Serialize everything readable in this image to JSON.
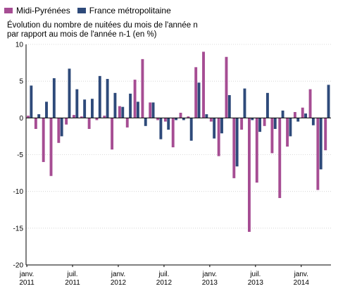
{
  "chart_data": {
    "type": "bar",
    "subtitle_line1": "Évolution du nombre de nuitées du mois de l'année n",
    "subtitle_line2": "par rapport au mois de l'année n-1 (en %)",
    "ylim": [
      -20,
      10
    ],
    "yticks": [
      -20,
      -15,
      -10,
      -5,
      0,
      5,
      10
    ],
    "ytick_labels": [
      "-20",
      "-15",
      "-10",
      "-5",
      "0",
      "5",
      "10"
    ],
    "grid": true,
    "legend_position": "top-left",
    "xtick_labels": [
      {
        "index": 0,
        "line1": "janv.",
        "line2": "2011"
      },
      {
        "index": 6,
        "line1": "juil.",
        "line2": "2011"
      },
      {
        "index": 12,
        "line1": "janv.",
        "line2": "2012"
      },
      {
        "index": 18,
        "line1": "juil.",
        "line2": "2012"
      },
      {
        "index": 24,
        "line1": "janv.",
        "line2": "2013"
      },
      {
        "index": 30,
        "line1": "juil.",
        "line2": "2013"
      },
      {
        "index": 36,
        "line1": "janv.",
        "line2": "2014"
      }
    ],
    "categories": [
      "2011-01",
      "2011-02",
      "2011-03",
      "2011-04",
      "2011-05",
      "2011-06",
      "2011-07",
      "2011-08",
      "2011-09",
      "2011-10",
      "2011-11",
      "2011-12",
      "2012-01",
      "2012-02",
      "2012-03",
      "2012-04",
      "2012-05",
      "2012-06",
      "2012-07",
      "2012-08",
      "2012-09",
      "2012-10",
      "2012-11",
      "2012-12",
      "2013-01",
      "2013-02",
      "2013-03",
      "2013-04",
      "2013-05",
      "2013-06",
      "2013-07",
      "2013-08",
      "2013-09",
      "2013-10",
      "2013-11",
      "2013-12",
      "2014-01",
      "2014-02",
      "2014-03",
      "2014-04"
    ],
    "series": [
      {
        "name": "Midi-Pyrénées",
        "color": "#a64d93",
        "values": [
          0.3,
          -1.5,
          -6.0,
          -7.9,
          -3.4,
          -0.9,
          0.4,
          0.2,
          -1.5,
          -0.3,
          0.3,
          -4.3,
          1.6,
          -1.3,
          5.2,
          8.0,
          2.1,
          -0.3,
          -0.5,
          -4.0,
          0.7,
          0.2,
          6.9,
          9.0,
          -0.5,
          -5.2,
          8.3,
          -8.2,
          -1.6,
          -15.5,
          -8.8,
          -1.1,
          -4.8,
          -10.9,
          -3.9,
          0.8,
          1.4,
          3.9,
          -9.8,
          -4.4
        ]
      },
      {
        "name": "France métropolitaine",
        "color": "#2e4a7a",
        "values": [
          4.4,
          0.5,
          2.2,
          5.4,
          -2.5,
          6.7,
          3.9,
          2.5,
          2.6,
          5.7,
          5.3,
          3.4,
          1.5,
          3.3,
          2.2,
          -1.1,
          2.1,
          -2.9,
          -1.6,
          -0.3,
          -0.3,
          -3.1,
          4.8,
          0.5,
          -2.8,
          -2.1,
          3.1,
          -6.6,
          4.0,
          -0.3,
          -1.9,
          3.4,
          -1.5,
          1.0,
          -2.5,
          -0.5,
          0.6,
          -1.0,
          -7.0,
          4.5
        ]
      }
    ]
  }
}
